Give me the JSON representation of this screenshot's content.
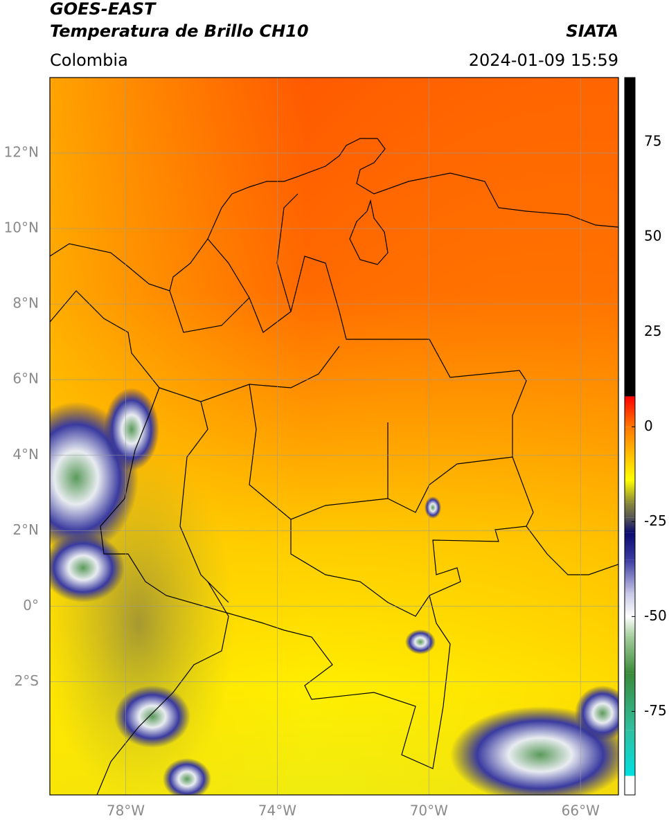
{
  "header": {
    "title": "GOES-EAST",
    "subtitle": "Temperatura de Brillo CH10",
    "source": "SIATA",
    "region": "Colombia",
    "timestamp": "2024-01-09 15:59"
  },
  "map": {
    "xlim": [
      -80,
      -65
    ],
    "ylim": [
      -5,
      14
    ],
    "xticks": [
      {
        "value": -78,
        "label": "78°W"
      },
      {
        "value": -74,
        "label": "74°W"
      },
      {
        "value": -70,
        "label": "70°W"
      },
      {
        "value": -66,
        "label": "66°W"
      }
    ],
    "yticks": [
      {
        "value": 12,
        "label": "12°N"
      },
      {
        "value": 10,
        "label": "10°N"
      },
      {
        "value": 8,
        "label": "8°N"
      },
      {
        "value": 6,
        "label": "6°N"
      },
      {
        "value": 4,
        "label": "4°N"
      },
      {
        "value": 2,
        "label": "2°N"
      },
      {
        "value": 0,
        "label": "0°"
      },
      {
        "value": -2,
        "label": "2°S"
      }
    ],
    "grid": true
  },
  "colorbar": {
    "lim": [
      -97,
      92
    ],
    "ticks": [
      75,
      50,
      25,
      0,
      -25,
      -50,
      -75
    ],
    "stops": [
      {
        "value": 92,
        "color": "#000000"
      },
      {
        "value": 8,
        "color": "#000000"
      },
      {
        "value": 8,
        "color": "#ff0000"
      },
      {
        "value": 0,
        "color": "#ff7700"
      },
      {
        "value": -14,
        "color": "#ffff00"
      },
      {
        "value": -20,
        "color": "#8a8a3a"
      },
      {
        "value": -24,
        "color": "#555555"
      },
      {
        "value": -28,
        "color": "#0a0a70"
      },
      {
        "value": -35,
        "color": "#3a3aa0"
      },
      {
        "value": -44,
        "color": "#c8c8e8"
      },
      {
        "value": -50,
        "color": "#ffffff"
      },
      {
        "value": -55,
        "color": "#a8d0a0"
      },
      {
        "value": -65,
        "color": "#3a8a3a"
      },
      {
        "value": -80,
        "color": "#30c0a0"
      },
      {
        "value": -92,
        "color": "#00e0e0"
      },
      {
        "value": -92,
        "color": "#ffffff"
      },
      {
        "value": -97,
        "color": "#ffffff"
      }
    ]
  }
}
